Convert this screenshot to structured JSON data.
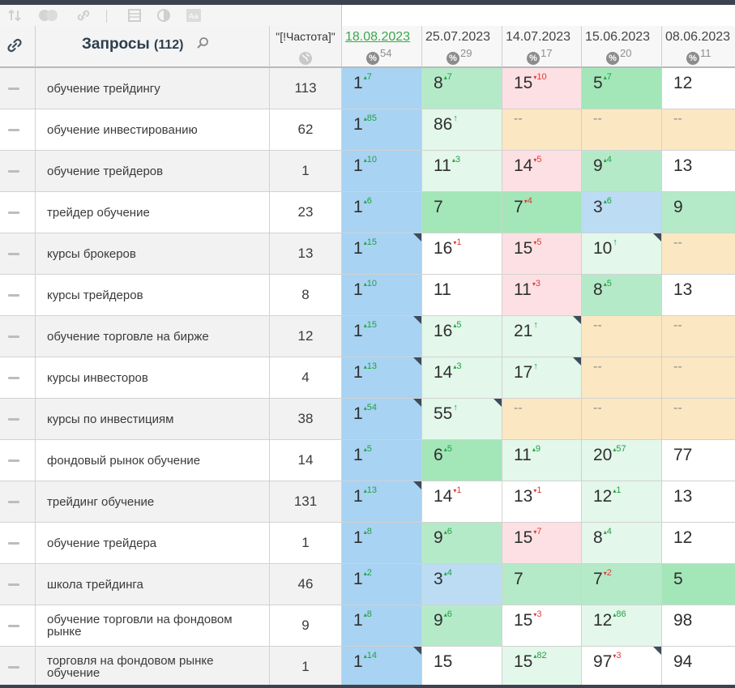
{
  "toolbar": {
    "icons": [
      "sort-icon",
      "toggle-icon",
      "link-icon",
      "table-icon",
      "contrast-icon",
      "font-icon"
    ]
  },
  "header": {
    "query_title": "Запросы",
    "query_count": "(112)",
    "freq_label": "\"[!Частота]\"",
    "dates": [
      {
        "label": "18.08.2023",
        "pct": "54",
        "active": true
      },
      {
        "label": "25.07.2023",
        "pct": "29",
        "active": false
      },
      {
        "label": "14.07.2023",
        "pct": "17",
        "active": false
      },
      {
        "label": "15.06.2023",
        "pct": "20",
        "active": false
      },
      {
        "label": "08.06.2023",
        "pct": "11",
        "active": false
      }
    ]
  },
  "rows": [
    {
      "query": "обучение трейдингу",
      "freq": "113",
      "cells": [
        {
          "v": "1",
          "c": "7",
          "d": "up",
          "bg": "blue",
          "corner": false
        },
        {
          "v": "8",
          "c": "7",
          "d": "up",
          "bg": "green",
          "corner": false
        },
        {
          "v": "15",
          "c": "10",
          "d": "down",
          "bg": "pink",
          "corner": false
        },
        {
          "v": "5",
          "c": "7",
          "d": "up",
          "bg": "green2",
          "corner": false
        },
        {
          "v": "12",
          "c": "",
          "d": "",
          "bg": "white",
          "corner": false
        }
      ]
    },
    {
      "query": "обучение инвестированию",
      "freq": "62",
      "cells": [
        {
          "v": "1",
          "c": "85",
          "d": "up",
          "bg": "blue",
          "corner": false
        },
        {
          "v": "86",
          "c": "↑",
          "d": "up",
          "bg": "light",
          "corner": false
        },
        {
          "v": "--",
          "c": "",
          "d": "",
          "bg": "beige",
          "corner": false
        },
        {
          "v": "--",
          "c": "",
          "d": "",
          "bg": "beige",
          "corner": false
        },
        {
          "v": "--",
          "c": "",
          "d": "",
          "bg": "beige",
          "corner": false
        }
      ]
    },
    {
      "query": "обучение трейдеров",
      "freq": "1",
      "cells": [
        {
          "v": "1",
          "c": "10",
          "d": "up",
          "bg": "blue",
          "corner": false
        },
        {
          "v": "11",
          "c": "3",
          "d": "up",
          "bg": "light",
          "corner": false
        },
        {
          "v": "14",
          "c": "5",
          "d": "down",
          "bg": "pink",
          "corner": false
        },
        {
          "v": "9",
          "c": "4",
          "d": "up",
          "bg": "green",
          "corner": false
        },
        {
          "v": "13",
          "c": "",
          "d": "",
          "bg": "white",
          "corner": false
        }
      ]
    },
    {
      "query": "трейдер обучение",
      "freq": "23",
      "cells": [
        {
          "v": "1",
          "c": "6",
          "d": "up",
          "bg": "blue",
          "corner": false
        },
        {
          "v": "7",
          "c": "",
          "d": "",
          "bg": "green2",
          "corner": false
        },
        {
          "v": "7",
          "c": "4",
          "d": "down",
          "bg": "green2",
          "corner": false
        },
        {
          "v": "3",
          "c": "6",
          "d": "up",
          "bg": "lightblue",
          "corner": false
        },
        {
          "v": "9",
          "c": "",
          "d": "",
          "bg": "green",
          "corner": false
        }
      ]
    },
    {
      "query": "курсы брокеров",
      "freq": "13",
      "cells": [
        {
          "v": "1",
          "c": "15",
          "d": "up",
          "bg": "blue",
          "corner": true
        },
        {
          "v": "16",
          "c": "1",
          "d": "down",
          "bg": "white",
          "corner": false
        },
        {
          "v": "15",
          "c": "5",
          "d": "down",
          "bg": "pink",
          "corner": false
        },
        {
          "v": "10",
          "c": "↑",
          "d": "up",
          "bg": "light",
          "corner": true
        },
        {
          "v": "--",
          "c": "",
          "d": "",
          "bg": "beige",
          "corner": false
        }
      ]
    },
    {
      "query": "курсы трейдеров",
      "freq": "8",
      "cells": [
        {
          "v": "1",
          "c": "10",
          "d": "up",
          "bg": "blue",
          "corner": false
        },
        {
          "v": "11",
          "c": "",
          "d": "",
          "bg": "white",
          "corner": false
        },
        {
          "v": "11",
          "c": "3",
          "d": "down",
          "bg": "pink",
          "corner": false
        },
        {
          "v": "8",
          "c": "5",
          "d": "up",
          "bg": "green",
          "corner": false
        },
        {
          "v": "13",
          "c": "",
          "d": "",
          "bg": "white",
          "corner": false
        }
      ]
    },
    {
      "query": "обучение торговле на бирже",
      "freq": "12",
      "cells": [
        {
          "v": "1",
          "c": "15",
          "d": "up",
          "bg": "blue",
          "corner": true
        },
        {
          "v": "16",
          "c": "5",
          "d": "up",
          "bg": "light",
          "corner": false
        },
        {
          "v": "21",
          "c": "↑",
          "d": "up",
          "bg": "light",
          "corner": true
        },
        {
          "v": "--",
          "c": "",
          "d": "",
          "bg": "beige",
          "corner": false
        },
        {
          "v": "--",
          "c": "",
          "d": "",
          "bg": "beige",
          "corner": false
        }
      ]
    },
    {
      "query": "курсы инвесторов",
      "freq": "4",
      "cells": [
        {
          "v": "1",
          "c": "13",
          "d": "up",
          "bg": "blue",
          "corner": true
        },
        {
          "v": "14",
          "c": "3",
          "d": "up",
          "bg": "light",
          "corner": false
        },
        {
          "v": "17",
          "c": "↑",
          "d": "up",
          "bg": "light",
          "corner": true
        },
        {
          "v": "--",
          "c": "",
          "d": "",
          "bg": "beige",
          "corner": false
        },
        {
          "v": "--",
          "c": "",
          "d": "",
          "bg": "beige",
          "corner": false
        }
      ]
    },
    {
      "query": "курсы по инвестициям",
      "freq": "38",
      "cells": [
        {
          "v": "1",
          "c": "54",
          "d": "up",
          "bg": "blue",
          "corner": true
        },
        {
          "v": "55",
          "c": "↑",
          "d": "up",
          "bg": "light",
          "corner": true
        },
        {
          "v": "--",
          "c": "",
          "d": "",
          "bg": "beige",
          "corner": false
        },
        {
          "v": "--",
          "c": "",
          "d": "",
          "bg": "beige",
          "corner": false
        },
        {
          "v": "--",
          "c": "",
          "d": "",
          "bg": "beige",
          "corner": false
        }
      ]
    },
    {
      "query": "фондовый рынок обучение",
      "freq": "14",
      "cells": [
        {
          "v": "1",
          "c": "5",
          "d": "up",
          "bg": "blue",
          "corner": false
        },
        {
          "v": "6",
          "c": "5",
          "d": "up",
          "bg": "green2",
          "corner": false
        },
        {
          "v": "11",
          "c": "9",
          "d": "up",
          "bg": "light",
          "corner": false
        },
        {
          "v": "20",
          "c": "57",
          "d": "up",
          "bg": "light",
          "corner": false
        },
        {
          "v": "77",
          "c": "",
          "d": "",
          "bg": "white",
          "corner": false
        }
      ]
    },
    {
      "query": "трейдинг обучение",
      "freq": "131",
      "cells": [
        {
          "v": "1",
          "c": "13",
          "d": "up",
          "bg": "blue",
          "corner": true
        },
        {
          "v": "14",
          "c": "1",
          "d": "down",
          "bg": "white",
          "corner": false
        },
        {
          "v": "13",
          "c": "1",
          "d": "down",
          "bg": "white",
          "corner": false
        },
        {
          "v": "12",
          "c": "1",
          "d": "up",
          "bg": "light",
          "corner": false
        },
        {
          "v": "13",
          "c": "",
          "d": "",
          "bg": "white",
          "corner": false
        }
      ]
    },
    {
      "query": "обучение трейдера",
      "freq": "1",
      "cells": [
        {
          "v": "1",
          "c": "8",
          "d": "up",
          "bg": "blue",
          "corner": false
        },
        {
          "v": "9",
          "c": "6",
          "d": "up",
          "bg": "green",
          "corner": false
        },
        {
          "v": "15",
          "c": "7",
          "d": "down",
          "bg": "pink",
          "corner": false
        },
        {
          "v": "8",
          "c": "4",
          "d": "up",
          "bg": "light",
          "corner": false
        },
        {
          "v": "12",
          "c": "",
          "d": "",
          "bg": "white",
          "corner": false
        }
      ]
    },
    {
      "query": "школа трейдинга",
      "freq": "46",
      "cells": [
        {
          "v": "1",
          "c": "2",
          "d": "up",
          "bg": "blue",
          "corner": false
        },
        {
          "v": "3",
          "c": "4",
          "d": "up",
          "bg": "lightblue",
          "corner": false
        },
        {
          "v": "7",
          "c": "",
          "d": "",
          "bg": "green",
          "corner": false
        },
        {
          "v": "7",
          "c": "2",
          "d": "down",
          "bg": "green",
          "corner": false
        },
        {
          "v": "5",
          "c": "",
          "d": "",
          "bg": "green2",
          "corner": false
        }
      ]
    },
    {
      "query": "обучение торговли на фондовом рынке",
      "freq": "9",
      "cells": [
        {
          "v": "1",
          "c": "8",
          "d": "up",
          "bg": "blue",
          "corner": false
        },
        {
          "v": "9",
          "c": "6",
          "d": "up",
          "bg": "green",
          "corner": false
        },
        {
          "v": "15",
          "c": "3",
          "d": "down",
          "bg": "white",
          "corner": false
        },
        {
          "v": "12",
          "c": "86",
          "d": "up",
          "bg": "light",
          "corner": false
        },
        {
          "v": "98",
          "c": "",
          "d": "",
          "bg": "white",
          "corner": false
        }
      ]
    },
    {
      "query": "торговля на фондовом рынке обучение",
      "freq": "1",
      "cells": [
        {
          "v": "1",
          "c": "14",
          "d": "up",
          "bg": "blue",
          "corner": true
        },
        {
          "v": "15",
          "c": "",
          "d": "",
          "bg": "white",
          "corner": false
        },
        {
          "v": "15",
          "c": "82",
          "d": "up",
          "bg": "light",
          "corner": false
        },
        {
          "v": "97",
          "c": "3",
          "d": "down",
          "bg": "white",
          "corner": true
        },
        {
          "v": "94",
          "c": "",
          "d": "",
          "bg": "white",
          "corner": false
        }
      ]
    }
  ]
}
